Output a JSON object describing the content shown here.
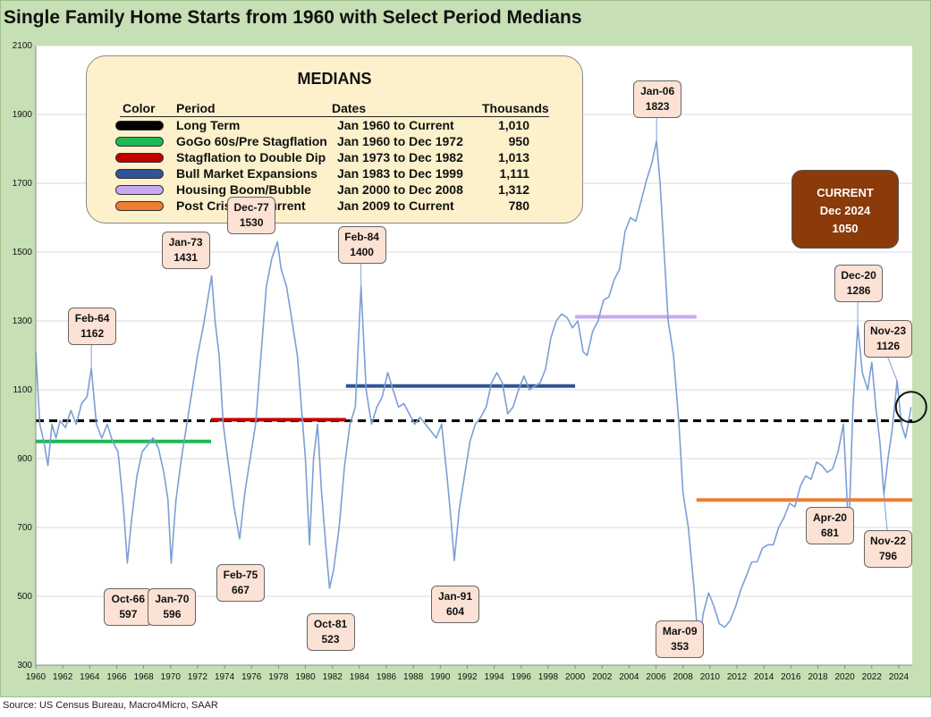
{
  "title": "Single Family Home Starts from 1960 with Select Period Medians",
  "source": "Source: US Census Bureau, Macro4Micro, SAAR",
  "medians_box": {
    "title": "MEDIANS",
    "headers": {
      "color": "Color",
      "period": "Period",
      "dates": "Dates",
      "thousands": "Thousands"
    },
    "rows": [
      {
        "color": "#000000",
        "period": "Long Term",
        "dates": "Jan 1960 to Current",
        "value": "1,010"
      },
      {
        "color": "#1db954",
        "period": "GoGo 60s/Pre Stagflation",
        "dates": "Jan 1960 to Dec 1972",
        "value": "950"
      },
      {
        "color": "#c00000",
        "period": "Stagflation to Double Dip",
        "dates": "Jan 1973 to Dec 1982",
        "value": "1,013"
      },
      {
        "color": "#2f5597",
        "period": "Bull Market Expansions",
        "dates": "Jan 1983 to Dec 1999",
        "value": "1,111"
      },
      {
        "color": "#c9a8f0",
        "period": "Housing Boom/Bubble",
        "dates": "Jan 2000 to Dec 2008",
        "value": "1,312"
      },
      {
        "color": "#ed7d31",
        "period": "Post Crisis to Current",
        "dates": "Jan 2009 to Current",
        "value": "780"
      }
    ]
  },
  "current_box": {
    "line1": "CURRENT",
    "line2": "Dec 2024",
    "line3": "1050",
    "color": "#8b3a0a"
  },
  "chart_data": {
    "type": "line",
    "title": "Single Family Home Starts from 1960 with Select Period Medians",
    "ylim": [
      300,
      2100
    ],
    "yticks": [
      "2100",
      "1900",
      "1700",
      "1500",
      "1300",
      "1100",
      "900",
      "700",
      "500",
      "300"
    ],
    "xlim": [
      1960,
      2025
    ],
    "xticks": [
      "1960",
      "1962",
      "1964",
      "1966",
      "1968",
      "1970",
      "1972",
      "1974",
      "1976",
      "1978",
      "1980",
      "1982",
      "1984",
      "1986",
      "1988",
      "1990",
      "1992",
      "1994",
      "1996",
      "1998",
      "2000",
      "2002",
      "2004",
      "2006",
      "2008",
      "2010",
      "2012",
      "2014",
      "2016",
      "2018",
      "2020",
      "2022",
      "2024"
    ],
    "series": [
      {
        "line_color": "#7b9fd4",
        "points": [
          [
            1960.0,
            1210
          ],
          [
            1960.3,
            1000
          ],
          [
            1960.6,
            950
          ],
          [
            1960.9,
            880
          ],
          [
            1961.2,
            1000
          ],
          [
            1961.5,
            960
          ],
          [
            1961.8,
            1010
          ],
          [
            1962.2,
            990
          ],
          [
            1962.6,
            1040
          ],
          [
            1963.0,
            1000
          ],
          [
            1963.4,
            1060
          ],
          [
            1963.8,
            1080
          ],
          [
            1964.12,
            1162
          ],
          [
            1964.5,
            1000
          ],
          [
            1964.9,
            960
          ],
          [
            1965.3,
            1000
          ],
          [
            1965.7,
            950
          ],
          [
            1966.1,
            920
          ],
          [
            1966.5,
            760
          ],
          [
            1966.79,
            597
          ],
          [
            1967.1,
            720
          ],
          [
            1967.5,
            850
          ],
          [
            1967.9,
            920
          ],
          [
            1968.3,
            940
          ],
          [
            1968.7,
            960
          ],
          [
            1969.1,
            930
          ],
          [
            1969.5,
            860
          ],
          [
            1969.8,
            780
          ],
          [
            1970.04,
            596
          ],
          [
            1970.4,
            780
          ],
          [
            1970.8,
            900
          ],
          [
            1971.2,
            1000
          ],
          [
            1971.6,
            1100
          ],
          [
            1972.0,
            1200
          ],
          [
            1972.4,
            1280
          ],
          [
            1972.7,
            1350
          ],
          [
            1973.04,
            1431
          ],
          [
            1973.3,
            1300
          ],
          [
            1973.6,
            1200
          ],
          [
            1973.9,
            1000
          ],
          [
            1974.3,
            880
          ],
          [
            1974.7,
            760
          ],
          [
            1975.12,
            667
          ],
          [
            1975.5,
            800
          ],
          [
            1975.9,
            900
          ],
          [
            1976.3,
            1000
          ],
          [
            1976.7,
            1200
          ],
          [
            1977.1,
            1400
          ],
          [
            1977.5,
            1480
          ],
          [
            1977.92,
            1530
          ],
          [
            1978.2,
            1450
          ],
          [
            1978.6,
            1400
          ],
          [
            1979.0,
            1300
          ],
          [
            1979.4,
            1200
          ],
          [
            1979.7,
            1050
          ],
          [
            1980.0,
            900
          ],
          [
            1980.3,
            650
          ],
          [
            1980.6,
            900
          ],
          [
            1980.9,
            1000
          ],
          [
            1981.2,
            800
          ],
          [
            1981.5,
            650
          ],
          [
            1981.79,
            523
          ],
          [
            1982.1,
            580
          ],
          [
            1982.5,
            700
          ],
          [
            1982.9,
            880
          ],
          [
            1983.3,
            1000
          ],
          [
            1983.7,
            1050
          ],
          [
            1984.12,
            1400
          ],
          [
            1984.5,
            1100
          ],
          [
            1984.9,
            1000
          ],
          [
            1985.3,
            1050
          ],
          [
            1985.7,
            1080
          ],
          [
            1986.1,
            1150
          ],
          [
            1986.5,
            1100
          ],
          [
            1986.9,
            1050
          ],
          [
            1987.3,
            1060
          ],
          [
            1987.7,
            1030
          ],
          [
            1988.1,
            1000
          ],
          [
            1988.5,
            1020
          ],
          [
            1988.9,
            1000
          ],
          [
            1989.3,
            980
          ],
          [
            1989.7,
            960
          ],
          [
            1990.1,
            1000
          ],
          [
            1990.5,
            850
          ],
          [
            1990.8,
            720
          ],
          [
            1991.04,
            604
          ],
          [
            1991.4,
            750
          ],
          [
            1991.8,
            850
          ],
          [
            1992.2,
            950
          ],
          [
            1992.6,
            1000
          ],
          [
            1993.0,
            1020
          ],
          [
            1993.4,
            1050
          ],
          [
            1993.8,
            1120
          ],
          [
            1994.2,
            1150
          ],
          [
            1994.6,
            1120
          ],
          [
            1995.0,
            1030
          ],
          [
            1995.4,
            1050
          ],
          [
            1995.8,
            1100
          ],
          [
            1996.2,
            1140
          ],
          [
            1996.6,
            1100
          ],
          [
            1997.0,
            1110
          ],
          [
            1997.4,
            1120
          ],
          [
            1997.8,
            1160
          ],
          [
            1998.2,
            1250
          ],
          [
            1998.6,
            1300
          ],
          [
            1999.0,
            1320
          ],
          [
            1999.4,
            1310
          ],
          [
            1999.8,
            1280
          ],
          [
            2000.2,
            1300
          ],
          [
            2000.6,
            1210
          ],
          [
            2000.9,
            1200
          ],
          [
            2001.3,
            1270
          ],
          [
            2001.7,
            1300
          ],
          [
            2002.1,
            1360
          ],
          [
            2002.5,
            1370
          ],
          [
            2002.9,
            1420
          ],
          [
            2003.3,
            1450
          ],
          [
            2003.7,
            1560
          ],
          [
            2004.1,
            1600
          ],
          [
            2004.5,
            1590
          ],
          [
            2004.9,
            1650
          ],
          [
            2005.3,
            1710
          ],
          [
            2005.7,
            1760
          ],
          [
            2006.04,
            1823
          ],
          [
            2006.3,
            1700
          ],
          [
            2006.6,
            1500
          ],
          [
            2006.9,
            1300
          ],
          [
            2007.3,
            1200
          ],
          [
            2007.7,
            1000
          ],
          [
            2008.0,
            800
          ],
          [
            2008.4,
            700
          ],
          [
            2008.8,
            530
          ],
          [
            2009.16,
            353
          ],
          [
            2009.5,
            450
          ],
          [
            2009.9,
            510
          ],
          [
            2010.3,
            470
          ],
          [
            2010.7,
            420
          ],
          [
            2011.1,
            410
          ],
          [
            2011.5,
            430
          ],
          [
            2011.9,
            470
          ],
          [
            2012.3,
            520
          ],
          [
            2012.7,
            560
          ],
          [
            2013.1,
            600
          ],
          [
            2013.5,
            600
          ],
          [
            2013.9,
            640
          ],
          [
            2014.3,
            650
          ],
          [
            2014.7,
            650
          ],
          [
            2015.1,
            700
          ],
          [
            2015.5,
            730
          ],
          [
            2015.9,
            770
          ],
          [
            2016.3,
            760
          ],
          [
            2016.7,
            820
          ],
          [
            2017.1,
            850
          ],
          [
            2017.5,
            840
          ],
          [
            2017.9,
            890
          ],
          [
            2018.3,
            880
          ],
          [
            2018.7,
            860
          ],
          [
            2019.1,
            870
          ],
          [
            2019.5,
            920
          ],
          [
            2019.9,
            1000
          ],
          [
            2020.29,
            681
          ],
          [
            2020.6,
            1050
          ],
          [
            2020.96,
            1286
          ],
          [
            2021.3,
            1150
          ],
          [
            2021.7,
            1100
          ],
          [
            2022.0,
            1180
          ],
          [
            2022.3,
            1050
          ],
          [
            2022.6,
            950
          ],
          [
            2022.9,
            796
          ],
          [
            2023.2,
            900
          ],
          [
            2023.5,
            980
          ],
          [
            2023.88,
            1126
          ],
          [
            2024.2,
            1000
          ],
          [
            2024.5,
            960
          ],
          [
            2024.92,
            1050
          ]
        ]
      }
    ],
    "medians": [
      {
        "name": "Long Term",
        "value": 1010,
        "x0": 1960,
        "x1": 2025,
        "color": "#000000",
        "dashed": true
      },
      {
        "name": "GoGo 60s/Pre Stagflation",
        "value": 950,
        "x0": 1960,
        "x1": 1973,
        "color": "#1db954"
      },
      {
        "name": "Stagflation to Double Dip",
        "value": 1013,
        "x0": 1973,
        "x1": 1983,
        "color": "#c00000"
      },
      {
        "name": "Bull Market Expansions",
        "value": 1111,
        "x0": 1983,
        "x1": 2000,
        "color": "#2f5597"
      },
      {
        "name": "Housing Boom/Bubble",
        "value": 1312,
        "x0": 2000,
        "x1": 2009,
        "color": "#c9a8f0"
      },
      {
        "name": "Post Crisis to Current",
        "value": 780,
        "x0": 2009,
        "x1": 2025,
        "color": "#ed7d31"
      }
    ],
    "annotations": [
      {
        "date": "Feb-64",
        "value": "1162",
        "x": 1964.12,
        "y": 1162,
        "pos": "above"
      },
      {
        "date": "Oct-66",
        "value": "597",
        "x": 1966.79,
        "y": 597,
        "pos": "below"
      },
      {
        "date": "Jan-70",
        "value": "596",
        "x": 1970.04,
        "y": 596,
        "pos": "below"
      },
      {
        "date": "Jan-73",
        "value": "1431",
        "x": 1973.04,
        "y": 1431,
        "pos": "left-above"
      },
      {
        "date": "Feb-75",
        "value": "667",
        "x": 1975.12,
        "y": 667,
        "pos": "below"
      },
      {
        "date": "Dec-77",
        "value": "1530",
        "x": 1977.92,
        "y": 1530,
        "pos": "left-above"
      },
      {
        "date": "Oct-81",
        "value": "523",
        "x": 1981.79,
        "y": 523,
        "pos": "below"
      },
      {
        "date": "Feb-84",
        "value": "1400",
        "x": 1984.12,
        "y": 1400,
        "pos": "above"
      },
      {
        "date": "Jan-91",
        "value": "604",
        "x": 1991.04,
        "y": 604,
        "pos": "below"
      },
      {
        "date": "Jan-06",
        "value": "1823",
        "x": 2006.04,
        "y": 1823,
        "pos": "above"
      },
      {
        "date": "Mar-09",
        "value": "353",
        "x": 2009.16,
        "y": 353,
        "pos": "left-below"
      },
      {
        "date": "Apr-20",
        "value": "681",
        "x": 2020.29,
        "y": 681,
        "pos": "left-below"
      },
      {
        "date": "Dec-20",
        "value": "1286",
        "x": 2020.96,
        "y": 1286,
        "pos": "above"
      },
      {
        "date": "Nov-22",
        "value": "796",
        "x": 2022.9,
        "y": 796,
        "pos": "right-below"
      },
      {
        "date": "Nov-23",
        "value": "1126",
        "x": 2023.88,
        "y": 1126,
        "pos": "above"
      }
    ],
    "highlight_circle": {
      "x": 2024.92,
      "y": 1050
    }
  }
}
